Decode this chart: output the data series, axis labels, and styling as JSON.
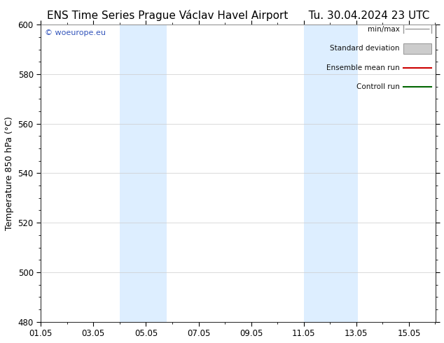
{
  "title_left": "ENS Time Series Prague Václav Havel Airport",
  "title_right": "Tu. 30.04.2024 23 UTC",
  "ylabel": "Temperature 850 hPa (°C)",
  "ylim": [
    480,
    600
  ],
  "yticks": [
    480,
    500,
    520,
    540,
    560,
    580,
    600
  ],
  "xlim": [
    1.0,
    16.0
  ],
  "xtick_labels": [
    "01.05",
    "03.05",
    "05.05",
    "07.05",
    "09.05",
    "11.05",
    "13.05",
    "15.05"
  ],
  "xtick_days": [
    1,
    3,
    5,
    7,
    9,
    11,
    13,
    15
  ],
  "shaded_bands": [
    {
      "xstart": 4.0,
      "xend": 5.0,
      "color": "#ddeeff"
    },
    {
      "xstart": 5.0,
      "xend": 5.8,
      "color": "#ddeeff"
    },
    {
      "xstart": 11.0,
      "xend": 12.0,
      "color": "#ddeeff"
    },
    {
      "xstart": 12.0,
      "xend": 13.0,
      "color": "#ddeeff"
    }
  ],
  "legend_items": [
    {
      "label": "min/max",
      "color": "#999999",
      "style": "minmax"
    },
    {
      "label": "Standard deviation",
      "color": "#cccccc",
      "style": "band"
    },
    {
      "label": "Ensemble mean run",
      "color": "#cc0000",
      "style": "line"
    },
    {
      "label": "Controll run",
      "color": "#006600",
      "style": "line"
    }
  ],
  "watermark": "© woeurope.eu",
  "watermark_color": "#3355bb",
  "background_color": "#ffffff",
  "plot_bg_color": "#ffffff",
  "grid_color": "#cccccc",
  "title_fontsize": 11,
  "axis_fontsize": 9,
  "tick_fontsize": 8.5,
  "legend_fontsize": 7.5
}
